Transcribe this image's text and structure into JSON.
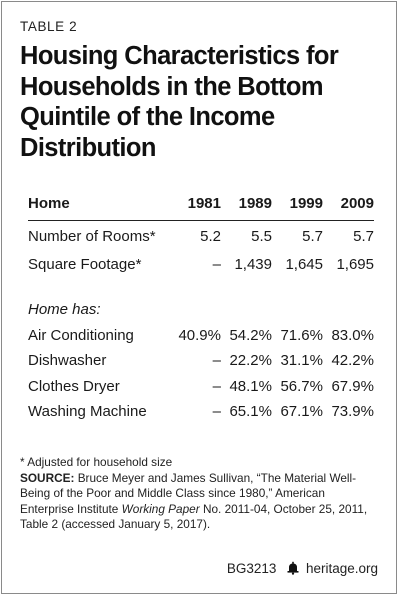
{
  "table_label": "TABLE 2",
  "title": "Housing Characteristics for Households in the Bottom Quintile of the Income Distribution",
  "table": {
    "headers": [
      "Home",
      "1981",
      "1989",
      "1999",
      "2009"
    ],
    "rows_home": [
      [
        "Number of Rooms*",
        "5.2",
        "5.5",
        "5.7",
        "5.7"
      ],
      [
        "Square Footage*",
        "–",
        "1,439",
        "1,645",
        "1,695"
      ]
    ],
    "subheading": "Home has:",
    "rows_has": [
      [
        "Air Conditioning",
        "40.9%",
        "54.2%",
        "71.6%",
        "83.0%"
      ],
      [
        "Dishwasher",
        "–",
        "22.2%",
        "31.1%",
        "42.2%"
      ],
      [
        "Clothes Dryer",
        "–",
        "48.1%",
        "56.7%",
        "67.9%"
      ],
      [
        "Washing Machine",
        "–",
        "65.1%",
        "67.1%",
        "73.9%"
      ]
    ]
  },
  "notes": {
    "footnote": "* Adjusted for household size",
    "source_label": "SOURCE:",
    "source_part1": "Bruce Meyer and James Sullivan, “The Material Well-Being of the Poor and Middle Class since 1980,” American Enterprise Institute",
    "source_italic": "Working Paper",
    "source_part2": "No. 2011-04, October 25, 2011, Table 2 (accessed January 5, 2017)."
  },
  "footer": {
    "code": "BG3213",
    "site": "heritage.org",
    "icon": "bell-icon"
  }
}
